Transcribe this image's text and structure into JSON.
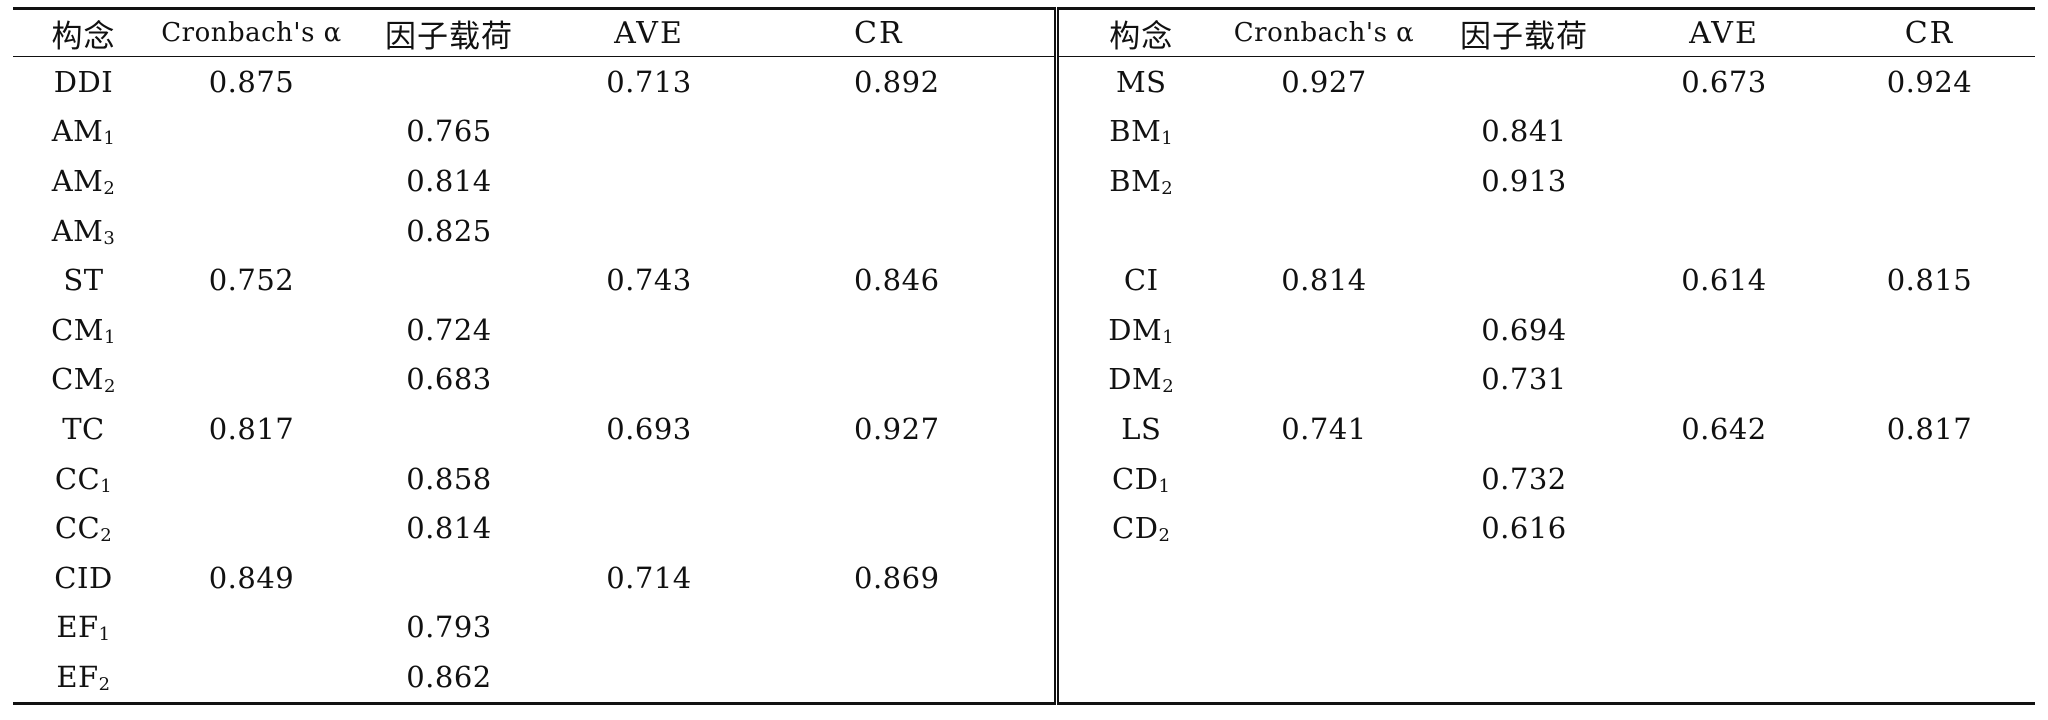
{
  "headers": {
    "construct": "构念",
    "alpha": "Cronbach's α",
    "loading": "因子载荷",
    "ave": "AVE",
    "cr": "CR"
  },
  "left": [
    {
      "construct": "DDI",
      "sub": "",
      "alpha": "0.875",
      "loading": "",
      "ave": "0.713",
      "cr": "0.892"
    },
    {
      "construct": "AM",
      "sub": "1",
      "alpha": "",
      "loading": "0.765",
      "ave": "",
      "cr": ""
    },
    {
      "construct": "AM",
      "sub": "2",
      "alpha": "",
      "loading": "0.814",
      "ave": "",
      "cr": ""
    },
    {
      "construct": "AM",
      "sub": "3",
      "alpha": "",
      "loading": "0.825",
      "ave": "",
      "cr": ""
    },
    {
      "construct": "ST",
      "sub": "",
      "alpha": "0.752",
      "loading": "",
      "ave": "0.743",
      "cr": "0.846"
    },
    {
      "construct": "CM",
      "sub": "1",
      "alpha": "",
      "loading": "0.724",
      "ave": "",
      "cr": ""
    },
    {
      "construct": "CM",
      "sub": "2",
      "alpha": "",
      "loading": "0.683",
      "ave": "",
      "cr": ""
    },
    {
      "construct": "TC",
      "sub": "",
      "alpha": "0.817",
      "loading": "",
      "ave": "0.693",
      "cr": "0.927"
    },
    {
      "construct": "CC",
      "sub": "1",
      "alpha": "",
      "loading": "0.858",
      "ave": "",
      "cr": ""
    },
    {
      "construct": "CC",
      "sub": "2",
      "alpha": "",
      "loading": "0.814",
      "ave": "",
      "cr": ""
    },
    {
      "construct": "CID",
      "sub": "",
      "alpha": "0.849",
      "loading": "",
      "ave": "0.714",
      "cr": "0.869"
    },
    {
      "construct": "EF",
      "sub": "1",
      "alpha": "",
      "loading": "0.793",
      "ave": "",
      "cr": ""
    },
    {
      "construct": "EF",
      "sub": "2",
      "alpha": "",
      "loading": "0.862",
      "ave": "",
      "cr": ""
    }
  ],
  "right": [
    {
      "construct": "MS",
      "sub": "",
      "alpha": "0.927",
      "loading": "",
      "ave": "0.673",
      "cr": "0.924"
    },
    {
      "construct": "BM",
      "sub": "1",
      "alpha": "",
      "loading": "0.841",
      "ave": "",
      "cr": ""
    },
    {
      "construct": "BM",
      "sub": "2",
      "alpha": "",
      "loading": "0.913",
      "ave": "",
      "cr": ""
    },
    {
      "construct": "",
      "sub": "",
      "alpha": "",
      "loading": "",
      "ave": "",
      "cr": ""
    },
    {
      "construct": "CI",
      "sub": "",
      "alpha": "0.814",
      "loading": "",
      "ave": "0.614",
      "cr": "0.815"
    },
    {
      "construct": "DM",
      "sub": "1",
      "alpha": "",
      "loading": "0.694",
      "ave": "",
      "cr": ""
    },
    {
      "construct": "DM",
      "sub": "2",
      "alpha": "",
      "loading": "0.731",
      "ave": "",
      "cr": ""
    },
    {
      "construct": "LS",
      "sub": "",
      "alpha": "0.741",
      "loading": "",
      "ave": "0.642",
      "cr": "0.817"
    },
    {
      "construct": "CD",
      "sub": "1",
      "alpha": "",
      "loading": "0.732",
      "ave": "",
      "cr": ""
    },
    {
      "construct": "CD",
      "sub": "2",
      "alpha": "",
      "loading": "0.616",
      "ave": "",
      "cr": ""
    },
    {
      "construct": "",
      "sub": "",
      "alpha": "",
      "loading": "",
      "ave": "",
      "cr": ""
    },
    {
      "construct": "",
      "sub": "",
      "alpha": "",
      "loading": "",
      "ave": "",
      "cr": ""
    },
    {
      "construct": "",
      "sub": "",
      "alpha": "",
      "loading": "",
      "ave": "",
      "cr": ""
    }
  ]
}
